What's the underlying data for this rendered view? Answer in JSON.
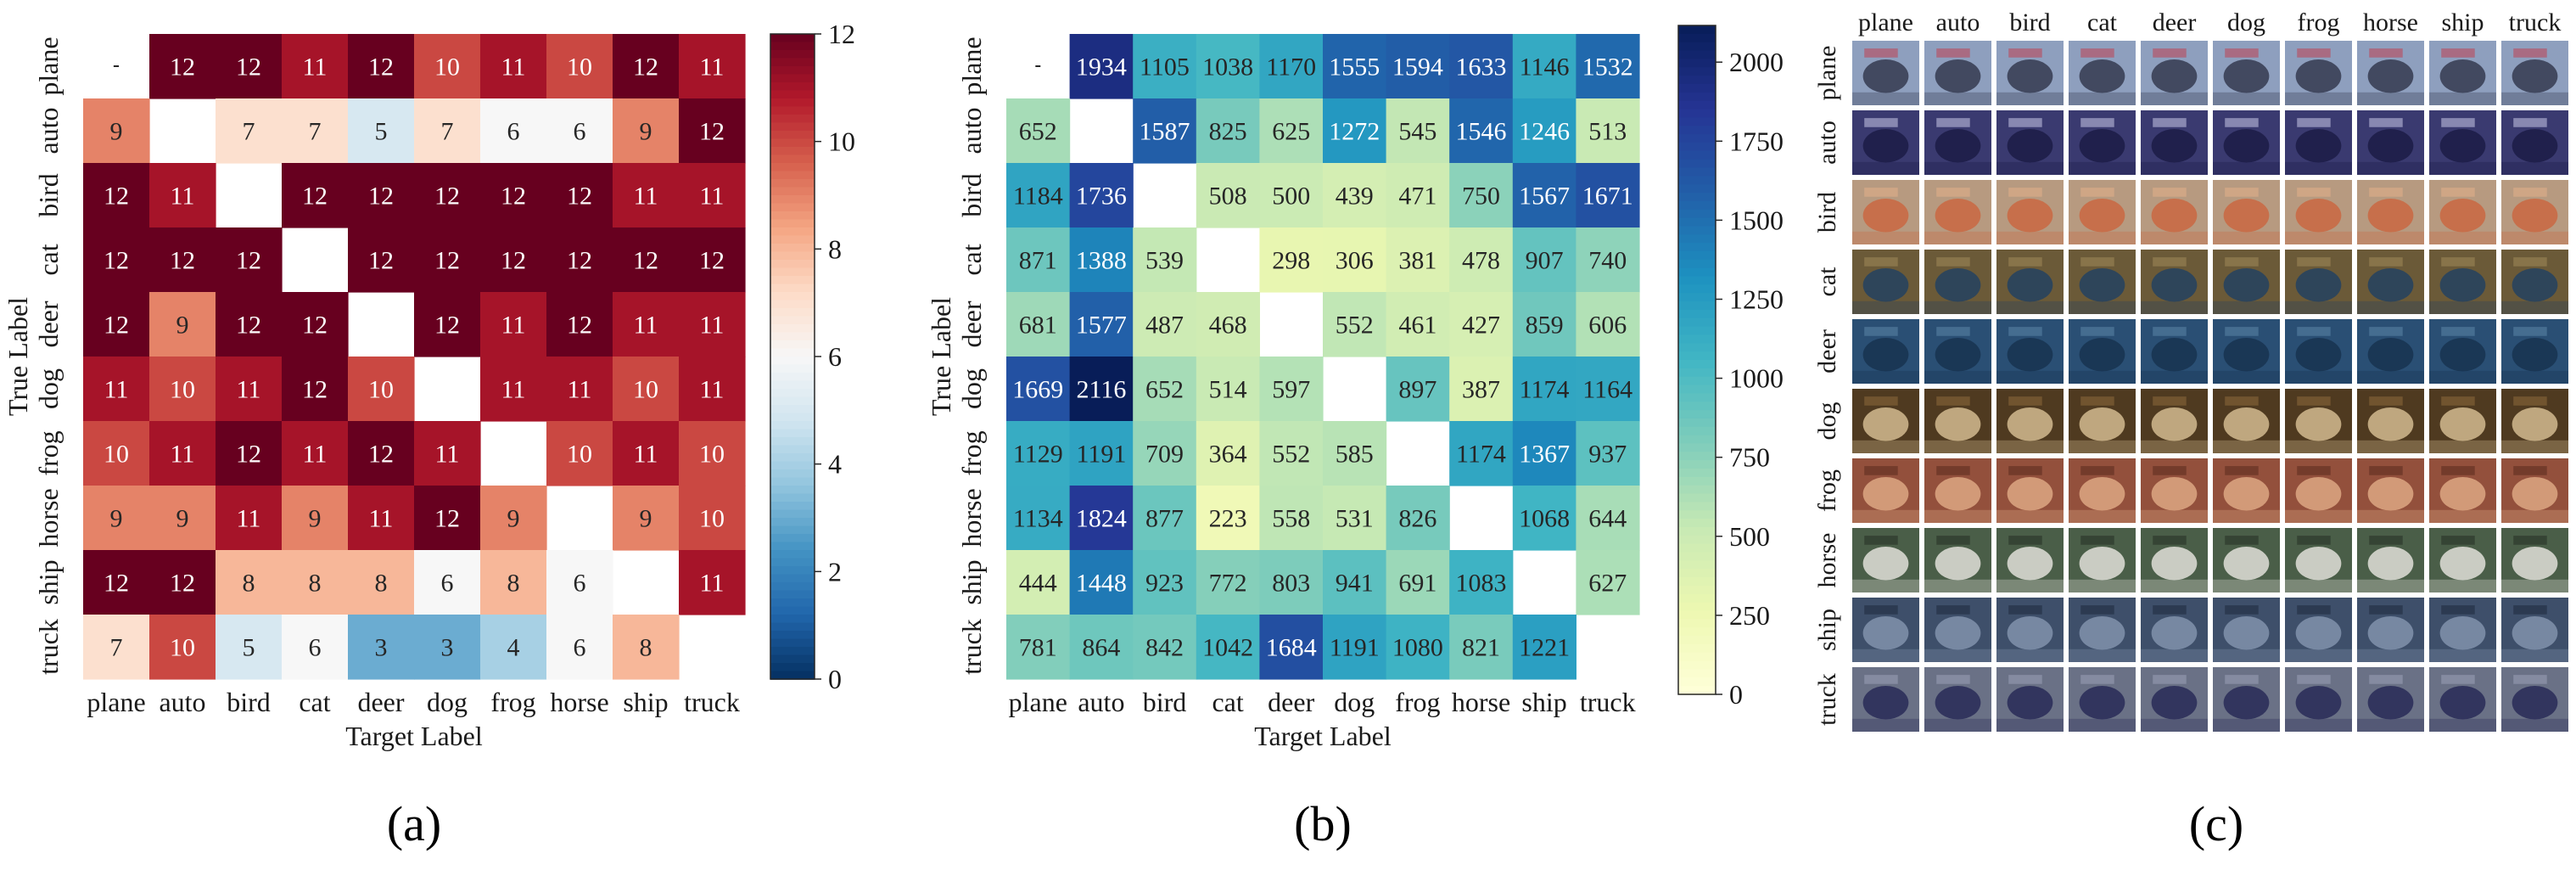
{
  "chart_data": [
    {
      "type": "heatmap",
      "panel_label": "(a)",
      "colormap": "RdBu_r",
      "x_categories": [
        "plane",
        "auto",
        "bird",
        "cat",
        "deer",
        "dog",
        "frog",
        "horse",
        "ship",
        "truck"
      ],
      "y_categories": [
        "plane",
        "auto",
        "bird",
        "cat",
        "deer",
        "dog",
        "frog",
        "horse",
        "ship",
        "truck"
      ],
      "xlabel": "Target Label",
      "ylabel": "True Label",
      "vmin": 0,
      "vmax": 12,
      "colorbar_ticks": [
        "0",
        "2",
        "4",
        "6",
        "8",
        "10",
        "12"
      ],
      "matrix": [
        [
          null,
          12,
          12,
          11,
          12,
          10,
          11,
          10,
          12,
          11
        ],
        [
          9,
          null,
          7,
          7,
          5,
          7,
          6,
          6,
          9,
          12
        ],
        [
          12,
          11,
          null,
          12,
          12,
          12,
          12,
          12,
          11,
          11
        ],
        [
          12,
          12,
          12,
          null,
          12,
          12,
          12,
          12,
          12,
          12
        ],
        [
          12,
          9,
          12,
          12,
          null,
          12,
          11,
          12,
          11,
          11
        ],
        [
          11,
          10,
          11,
          12,
          10,
          null,
          11,
          11,
          10,
          11
        ],
        [
          10,
          11,
          12,
          11,
          12,
          11,
          null,
          10,
          11,
          10
        ],
        [
          9,
          9,
          11,
          9,
          11,
          12,
          9,
          null,
          9,
          10
        ],
        [
          12,
          12,
          8,
          8,
          8,
          6,
          8,
          6,
          null,
          11
        ],
        [
          7,
          10,
          5,
          6,
          3,
          3,
          4,
          6,
          8,
          null
        ]
      ]
    },
    {
      "type": "heatmap",
      "panel_label": "(b)",
      "colormap": "YlGnBu",
      "x_categories": [
        "plane",
        "auto",
        "bird",
        "cat",
        "deer",
        "dog",
        "frog",
        "horse",
        "ship",
        "truck"
      ],
      "y_categories": [
        "plane",
        "auto",
        "bird",
        "cat",
        "deer",
        "dog",
        "frog",
        "horse",
        "ship",
        "truck"
      ],
      "xlabel": "Target Label",
      "ylabel": "True Label",
      "vmin": 0,
      "vmax": 2116,
      "colorbar_ticks": [
        "0",
        "250",
        "500",
        "750",
        "1000",
        "1250",
        "1500",
        "1750",
        "2000"
      ],
      "matrix": [
        [
          null,
          1934,
          1105,
          1038,
          1170,
          1555,
          1594,
          1633,
          1146,
          1532
        ],
        [
          652,
          null,
          1587,
          825,
          625,
          1272,
          545,
          1546,
          1246,
          513
        ],
        [
          1184,
          1736,
          null,
          508,
          500,
          439,
          471,
          750,
          1567,
          1671
        ],
        [
          871,
          1388,
          539,
          null,
          298,
          306,
          381,
          478,
          907,
          740
        ],
        [
          681,
          1577,
          487,
          468,
          null,
          552,
          461,
          427,
          859,
          606
        ],
        [
          1669,
          2116,
          652,
          514,
          597,
          null,
          897,
          387,
          1174,
          1164
        ],
        [
          1129,
          1191,
          709,
          364,
          552,
          585,
          null,
          1174,
          1367,
          937
        ],
        [
          1134,
          1824,
          877,
          223,
          558,
          531,
          826,
          null,
          1068,
          644
        ],
        [
          444,
          1448,
          923,
          772,
          803,
          941,
          691,
          1083,
          null,
          627
        ],
        [
          781,
          864,
          842,
          1042,
          1684,
          1191,
          1080,
          821,
          1221,
          null
        ]
      ]
    },
    {
      "type": "image_grid",
      "panel_label": "(c)",
      "column_labels": [
        "plane",
        "auto",
        "bird",
        "cat",
        "deer",
        "dog",
        "frog",
        "horse",
        "ship",
        "truck"
      ],
      "row_labels": [
        "plane",
        "auto",
        "bird",
        "cat",
        "deer",
        "dog",
        "frog",
        "horse",
        "ship",
        "truck"
      ],
      "tile_palettes": [
        {
          "bg": "#8e9fbe",
          "fg": "#3a3f55",
          "accent": "#c04050"
        },
        {
          "bg": "#3a3a70",
          "fg": "#1e1e48",
          "accent": "#c8c8e8"
        },
        {
          "bg": "#b79a80",
          "fg": "#c96a45",
          "accent": "#e3b088"
        },
        {
          "bg": "#6b5a38",
          "fg": "#28435e",
          "accent": "#a08b5a"
        },
        {
          "bg": "#2a4f74",
          "fg": "#183452",
          "accent": "#5b86a8"
        },
        {
          "bg": "#4f3a20",
          "fg": "#cbb48a",
          "accent": "#8e6a3c"
        },
        {
          "bg": "#93503c",
          "fg": "#d9a27e",
          "accent": "#5a2a1e"
        },
        {
          "bg": "#4a5e48",
          "fg": "#d8d8d0",
          "accent": "#243024"
        },
        {
          "bg": "#3e4f6a",
          "fg": "#7d8ea8",
          "accent": "#1e2a3c"
        },
        {
          "bg": "#6a7186",
          "fg": "#2c2f5a",
          "accent": "#9aa1b8"
        }
      ]
    }
  ]
}
